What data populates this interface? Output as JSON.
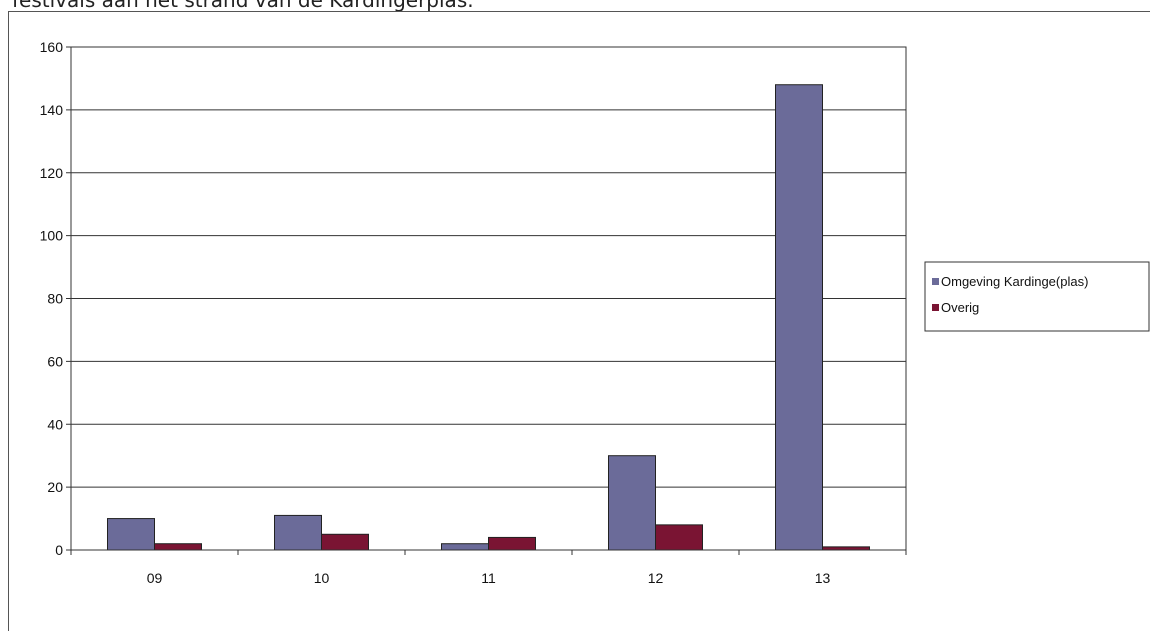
{
  "page": {
    "caption": "festivals aan het strand van de Kardingerplas."
  },
  "chart_data": {
    "type": "bar",
    "categories": [
      "09",
      "10",
      "11",
      "12",
      "13"
    ],
    "series": [
      {
        "name": "Omgeving Kardinge(plas)",
        "values": [
          10,
          11,
          2,
          30,
          148
        ],
        "color": "#6b6b99"
      },
      {
        "name": "Overig",
        "values": [
          2,
          5,
          4,
          8,
          1
        ],
        "color": "#7a1433"
      }
    ],
    "ylim": [
      0,
      160
    ],
    "yticks": [
      "0",
      "20",
      "40",
      "60",
      "80",
      "100",
      "120",
      "140",
      "160"
    ],
    "grid": true,
    "legend": "right",
    "xlabel": "",
    "ylabel": ""
  }
}
